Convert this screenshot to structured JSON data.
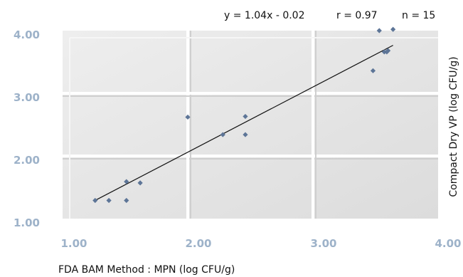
{
  "chart_data": {
    "type": "scatter",
    "title": "",
    "xlabel": "FDA BAM Method : MPN (log CFU/g)",
    "ylabel": "Compact Dry VP (log CFU/g)",
    "xlim": [
      1.0,
      4.0
    ],
    "ylim": [
      1.0,
      4.0
    ],
    "x_ticks": [
      "1.00",
      "2.00",
      "3.00",
      "4.00"
    ],
    "y_ticks": [
      "1.00",
      "2.00",
      "3.00",
      "4.00"
    ],
    "grid": true,
    "legend": "none",
    "annotations": {
      "equation": "y = 1.04x - 0.02",
      "r": "r = 0.97",
      "n": "n = 15"
    },
    "trendline": {
      "slope": 1.04,
      "intercept": -0.02,
      "x_range": [
        1.26,
        3.64
      ]
    },
    "series": [
      {
        "points": [
          {
            "x": 1.26,
            "y": 1.29
          },
          {
            "x": 1.37,
            "y": 1.29
          },
          {
            "x": 1.51,
            "y": 1.29
          },
          {
            "x": 1.51,
            "y": 1.59
          },
          {
            "x": 1.62,
            "y": 1.57
          },
          {
            "x": 2.0,
            "y": 2.62
          },
          {
            "x": 2.28,
            "y": 2.34
          },
          {
            "x": 2.46,
            "y": 2.34
          },
          {
            "x": 2.46,
            "y": 2.63
          },
          {
            "x": 3.48,
            "y": 3.36
          },
          {
            "x": 3.53,
            "y": 4.0
          },
          {
            "x": 3.57,
            "y": 3.66
          },
          {
            "x": 3.59,
            "y": 3.66
          },
          {
            "x": 3.6,
            "y": 3.68
          },
          {
            "x": 3.64,
            "y": 4.02
          }
        ]
      }
    ],
    "colors": {
      "marker": "#5d7597",
      "plot_background": "#e4e4e4",
      "gridline": "#ffffff",
      "tick_label": "#9db2c9",
      "trendline": "#111111"
    }
  }
}
